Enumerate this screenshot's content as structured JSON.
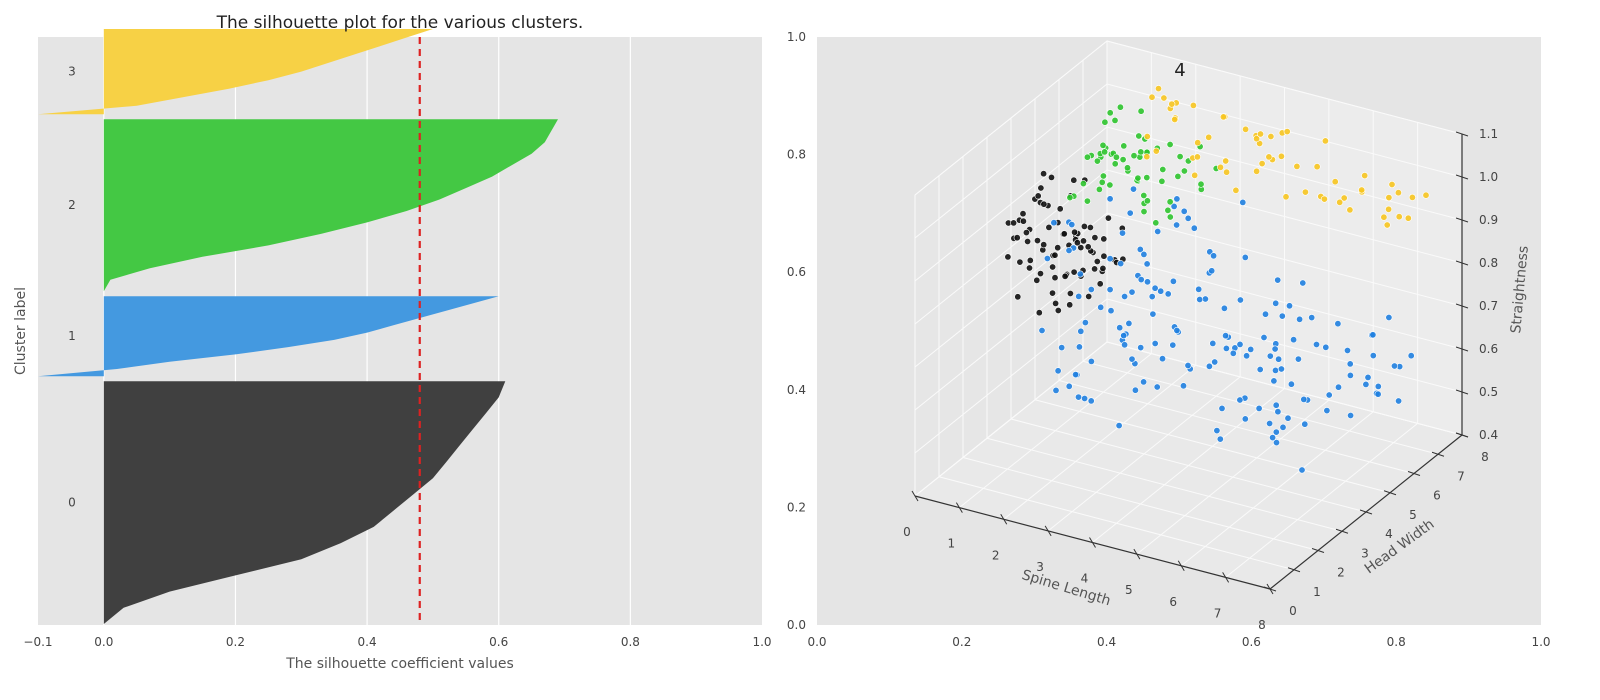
{
  "colors": {
    "panel_bg": "#e5e5e5",
    "grid": "#ffffff",
    "cluster_0": "#404040",
    "cluster_1": "#4499e0",
    "cluster_2": "#44c844",
    "cluster_3": "#f7d145",
    "scatter_0": "#111111",
    "scatter_1": "#1f7fe0",
    "scatter_2": "#2ec42e",
    "scatter_3": "#f7c520",
    "average_line": "#dd2222"
  },
  "chart_data": [
    {
      "type": "area",
      "subtype": "silhouette",
      "title": "The silhouette plot for the various clusters.",
      "xlabel": "The silhouette coefficient values",
      "ylabel": "Cluster label",
      "xlim": [
        -0.1,
        1.0
      ],
      "xticks": [
        "−0.1",
        "0.0",
        "0.2",
        "0.4",
        "0.6",
        "0.8",
        "1.0"
      ],
      "xtick_values": [
        -0.1,
        0.0,
        0.2,
        0.4,
        0.6,
        0.8,
        1.0
      ],
      "average_silhouette": 0.48,
      "grid": true,
      "clusters": [
        {
          "label": "0",
          "size": 370,
          "min": -0.015,
          "max": 0.61,
          "profile": [
            0.61,
            0.6,
            0.58,
            0.56,
            0.54,
            0.52,
            0.5,
            0.47,
            0.44,
            0.41,
            0.36,
            0.3,
            0.2,
            0.1,
            0.03,
            0.0
          ]
        },
        {
          "label": "1",
          "size": 122,
          "min": -0.1,
          "max": 0.6,
          "profile": [
            0.6,
            0.56,
            0.52,
            0.48,
            0.44,
            0.4,
            0.35,
            0.28,
            0.2,
            0.1,
            0.02,
            -0.1
          ]
        },
        {
          "label": "2",
          "size": 262,
          "min": 0.0,
          "max": 0.69,
          "profile": [
            0.69,
            0.68,
            0.67,
            0.65,
            0.62,
            0.59,
            0.55,
            0.51,
            0.46,
            0.4,
            0.33,
            0.25,
            0.15,
            0.07,
            0.01,
            0.0
          ]
        },
        {
          "label": "3",
          "size": 130,
          "min": -0.1,
          "max": 0.5,
          "profile": [
            0.5,
            0.46,
            0.42,
            0.38,
            0.34,
            0.3,
            0.25,
            0.19,
            0.12,
            0.05,
            -0.1
          ]
        }
      ]
    },
    {
      "type": "scatter",
      "subtype": "3d",
      "title": "4",
      "outer_axes": {
        "xlim": [
          0.0,
          1.0
        ],
        "ylim": [
          0.0,
          1.0
        ],
        "xticks": [
          "0.0",
          "0.2",
          "0.4",
          "0.6",
          "0.8",
          "1.0"
        ],
        "yticks": [
          "0.0",
          "0.2",
          "0.4",
          "0.6",
          "0.8",
          "1.0"
        ]
      },
      "xlabel": "Spine Length",
      "ylabel": "Head Width",
      "zlabel": "Straightness",
      "xlim": [
        0,
        8
      ],
      "ylim": [
        0,
        8
      ],
      "zlim": [
        0.4,
        1.1
      ],
      "xticks": [
        "0",
        "1",
        "2",
        "3",
        "4",
        "5",
        "6",
        "7",
        "8"
      ],
      "yticks": [
        "0",
        "1",
        "2",
        "3",
        "4",
        "5",
        "6",
        "7",
        "8"
      ],
      "zticks": [
        "0.4",
        "0.5",
        "0.6",
        "0.7",
        "0.8",
        "0.9",
        "1.0",
        "1.1"
      ],
      "series": [
        {
          "cluster": 0,
          "count": 80,
          "x_range": [
            0.2,
            1.6
          ],
          "y_range": [
            3.0,
            6.5
          ],
          "z_range": [
            0.7,
            0.95
          ]
        },
        {
          "cluster": 1,
          "count": 160,
          "x_range": [
            1.5,
            7.5
          ],
          "y_range": [
            2.5,
            7.5
          ],
          "z_range": [
            0.5,
            0.95
          ]
        },
        {
          "cluster": 2,
          "count": 60,
          "x_range": [
            0.5,
            3.0
          ],
          "y_range": [
            5.5,
            8.0
          ],
          "z_range": [
            0.85,
            1.0
          ]
        },
        {
          "cluster": 3,
          "count": 60,
          "x_range": [
            1.5,
            7.5
          ],
          "y_range": [
            6.5,
            8.0
          ],
          "z_range": [
            0.9,
            1.1
          ]
        }
      ]
    }
  ]
}
